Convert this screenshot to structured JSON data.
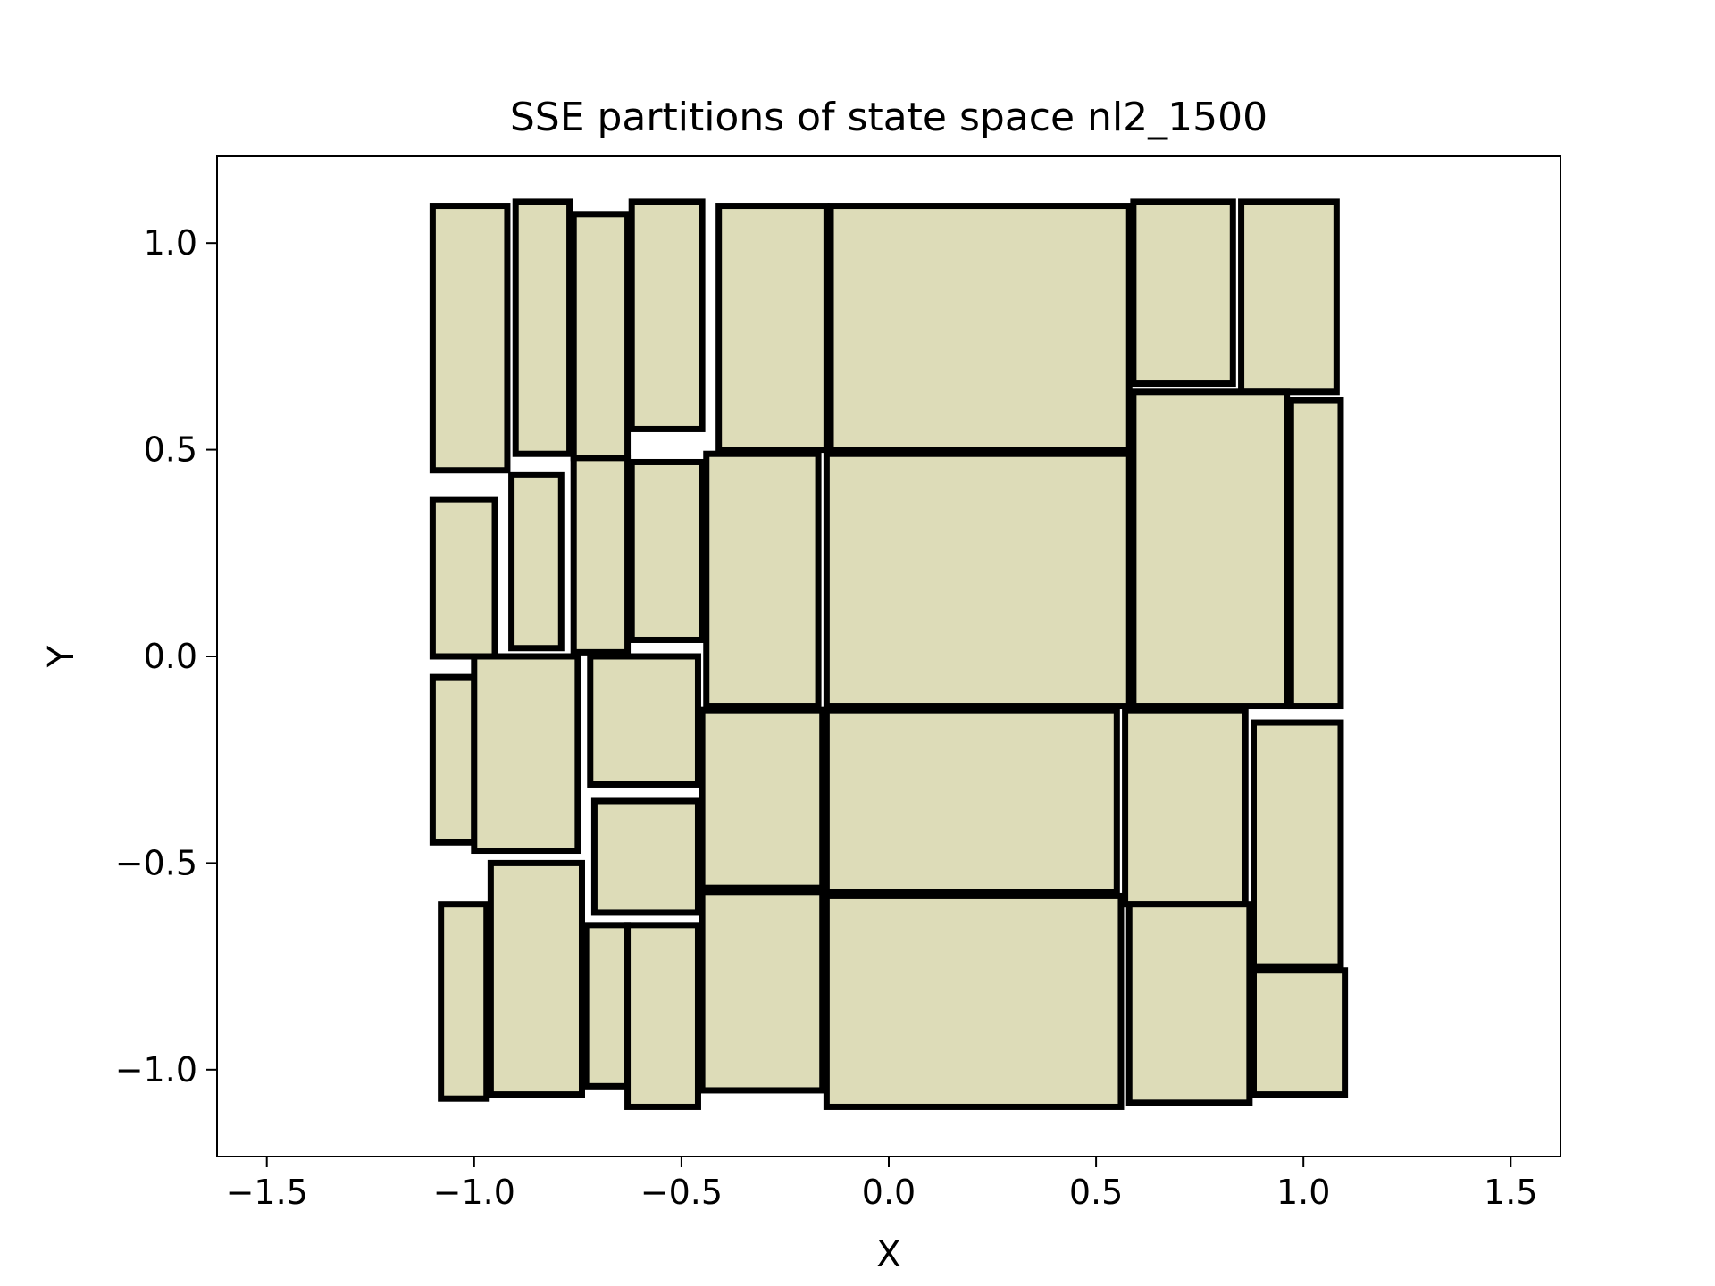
{
  "chart_data": {
    "type": "partition",
    "title": "SSE partitions of state space nl2_1500",
    "xlabel": "X",
    "ylabel": "Y",
    "xlim": [
      -1.62,
      1.62
    ],
    "ylim": [
      -1.21,
      1.21
    ],
    "xticks": [
      -1.5,
      -1.0,
      -0.5,
      0.0,
      0.5,
      1.0,
      1.5
    ],
    "xtick_labels": [
      "−1.5",
      "−1.0",
      "−0.5",
      "0.0",
      "0.5",
      "1.0",
      "1.5"
    ],
    "yticks": [
      -1.0,
      -0.5,
      0.0,
      0.5,
      1.0
    ],
    "ytick_labels": [
      "−1.0",
      "−0.5",
      "0.0",
      "0.5",
      "1.0"
    ],
    "fill_color": "#dddcb8",
    "edge_color": "#000000",
    "grid": false,
    "rects": [
      {
        "x0": -1.1,
        "x1": -0.92,
        "y0": 0.45,
        "y1": 1.09
      },
      {
        "x0": -0.9,
        "x1": -0.77,
        "y0": 0.49,
        "y1": 1.1
      },
      {
        "x0": -0.76,
        "x1": -0.63,
        "y0": 0.48,
        "y1": 1.07
      },
      {
        "x0": -0.62,
        "x1": -0.45,
        "y0": 0.55,
        "y1": 1.1
      },
      {
        "x0": -0.41,
        "x1": -0.15,
        "y0": 0.5,
        "y1": 1.09
      },
      {
        "x0": -0.14,
        "x1": 0.58,
        "y0": 0.5,
        "y1": 1.09
      },
      {
        "x0": 0.59,
        "x1": 0.83,
        "y0": 0.66,
        "y1": 1.1
      },
      {
        "x0": 0.85,
        "x1": 1.08,
        "y0": 0.64,
        "y1": 1.1
      },
      {
        "x0": -1.1,
        "x1": -0.95,
        "y0": 0.0,
        "y1": 0.38
      },
      {
        "x0": -0.91,
        "x1": -0.79,
        "y0": 0.02,
        "y1": 0.44
      },
      {
        "x0": -0.76,
        "x1": -0.63,
        "y0": 0.01,
        "y1": 0.48
      },
      {
        "x0": -0.62,
        "x1": -0.45,
        "y0": 0.04,
        "y1": 0.47
      },
      {
        "x0": -0.44,
        "x1": -0.17,
        "y0": -0.12,
        "y1": 0.49
      },
      {
        "x0": -0.15,
        "x1": 0.58,
        "y0": -0.12,
        "y1": 0.49
      },
      {
        "x0": 0.59,
        "x1": 0.96,
        "y0": -0.12,
        "y1": 0.64
      },
      {
        "x0": 0.97,
        "x1": 1.09,
        "y0": -0.12,
        "y1": 0.62
      },
      {
        "x0": -1.1,
        "x1": -1.0,
        "y0": -0.45,
        "y1": -0.05
      },
      {
        "x0": -1.0,
        "x1": -0.75,
        "y0": -0.47,
        "y1": 0.0
      },
      {
        "x0": -0.72,
        "x1": -0.46,
        "y0": -0.31,
        "y1": 0.0
      },
      {
        "x0": -0.71,
        "x1": -0.46,
        "y0": -0.62,
        "y1": -0.35
      },
      {
        "x0": -0.45,
        "x1": -0.16,
        "y0": -0.56,
        "y1": -0.13
      },
      {
        "x0": -0.15,
        "x1": 0.55,
        "y0": -0.57,
        "y1": -0.13
      },
      {
        "x0": 0.57,
        "x1": 0.86,
        "y0": -0.6,
        "y1": -0.13
      },
      {
        "x0": 0.88,
        "x1": 1.09,
        "y0": -0.75,
        "y1": -0.16
      },
      {
        "x0": -1.08,
        "x1": -0.97,
        "y0": -1.07,
        "y1": -0.6
      },
      {
        "x0": -0.96,
        "x1": -0.74,
        "y0": -1.06,
        "y1": -0.5
      },
      {
        "x0": -0.73,
        "x1": -0.63,
        "y0": -1.04,
        "y1": -0.65
      },
      {
        "x0": -0.63,
        "x1": -0.46,
        "y0": -1.09,
        "y1": -0.65
      },
      {
        "x0": -0.45,
        "x1": -0.16,
        "y0": -1.05,
        "y1": -0.57
      },
      {
        "x0": -0.15,
        "x1": 0.56,
        "y0": -1.09,
        "y1": -0.58
      },
      {
        "x0": 0.58,
        "x1": 0.87,
        "y0": -1.08,
        "y1": -0.6
      },
      {
        "x0": 0.88,
        "x1": 1.1,
        "y0": -1.06,
        "y1": -0.76
      }
    ]
  }
}
